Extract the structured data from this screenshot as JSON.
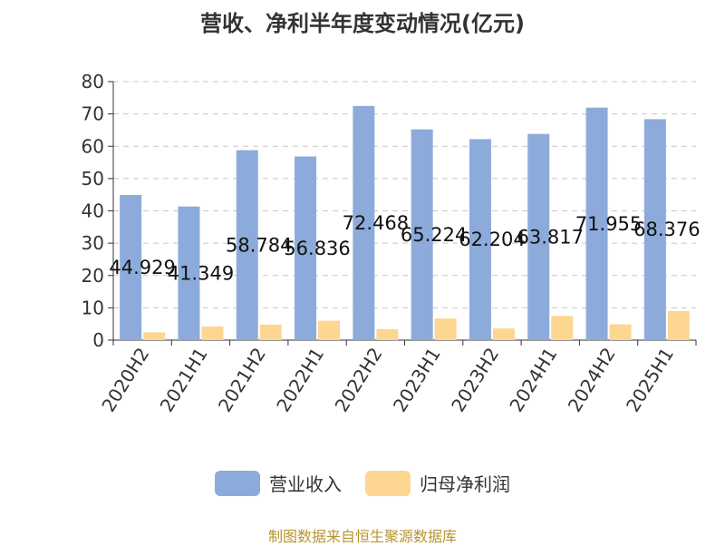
{
  "title": "营收、净利半年度变动情况(亿元)",
  "source": "制图数据来自恒生聚源数据库",
  "colors": {
    "revenue": "#8dabda",
    "net_profit": "#fdd692",
    "grid": "#c8c8c8",
    "axis": "#333333",
    "text": "#333333"
  },
  "chart_data": {
    "type": "bar",
    "title": "营收、净利半年度变动情况(亿元)",
    "categories": [
      "2020H2",
      "2021H1",
      "2021H2",
      "2022H1",
      "2022H2",
      "2023H1",
      "2023H2",
      "2024H1",
      "2024H2",
      "2025H1"
    ],
    "series": [
      {
        "name": "营业收入",
        "values": [
          44.929,
          41.349,
          58.784,
          56.836,
          72.468,
          65.224,
          62.204,
          63.817,
          71.955,
          68.376
        ],
        "labels": [
          "44.929",
          "41.349",
          "58.784",
          "56.836",
          "72.468",
          "65.224",
          "62.204",
          "63.817",
          "71.955",
          "68.376"
        ]
      },
      {
        "name": "归母净利润",
        "values": [
          2.4,
          4.2,
          4.8,
          6.0,
          3.4,
          6.7,
          3.6,
          7.5,
          4.9,
          9.0
        ]
      }
    ],
    "yticks": [
      "0",
      "10",
      "20",
      "30",
      "40",
      "50",
      "60",
      "70",
      "80"
    ],
    "ylim": [
      0,
      80
    ],
    "grid": true,
    "legend_position": "bottom"
  }
}
